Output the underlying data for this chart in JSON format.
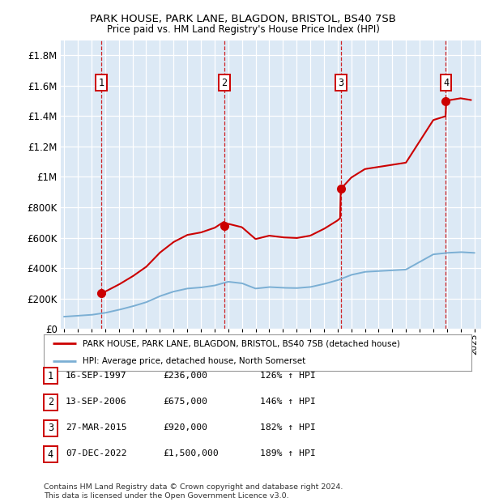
{
  "title1": "PARK HOUSE, PARK LANE, BLAGDON, BRISTOL, BS40 7SB",
  "title2": "Price paid vs. HM Land Registry's House Price Index (HPI)",
  "xlim": [
    1994.75,
    2025.5
  ],
  "ylim": [
    0,
    1900000
  ],
  "yticks": [
    0,
    200000,
    400000,
    600000,
    800000,
    1000000,
    1200000,
    1400000,
    1600000,
    1800000
  ],
  "ytick_labels": [
    "£0",
    "£200K",
    "£400K",
    "£600K",
    "£800K",
    "£1M",
    "£1.2M",
    "£1.4M",
    "£1.6M",
    "£1.8M"
  ],
  "plot_bg": "#dce9f5",
  "grid_color": "#ffffff",
  "purchases": [
    {
      "date_dec": 1997.71,
      "price": 236000,
      "label": "1"
    },
    {
      "date_dec": 2006.71,
      "price": 675000,
      "label": "2"
    },
    {
      "date_dec": 2015.23,
      "price": 920000,
      "label": "3"
    },
    {
      "date_dec": 2022.92,
      "price": 1500000,
      "label": "4"
    }
  ],
  "hpi_color": "#7bafd4",
  "price_color": "#cc0000",
  "legend_line1": "PARK HOUSE, PARK LANE, BLAGDON, BRISTOL, BS40 7SB (detached house)",
  "legend_line2": "HPI: Average price, detached house, North Somerset",
  "table_data": [
    {
      "num": "1",
      "date": "16-SEP-1997",
      "price": "£236,000",
      "hpi": "126% ↑ HPI"
    },
    {
      "num": "2",
      "date": "13-SEP-2006",
      "price": "£675,000",
      "hpi": "146% ↑ HPI"
    },
    {
      "num": "3",
      "date": "27-MAR-2015",
      "price": "£920,000",
      "hpi": "182% ↑ HPI"
    },
    {
      "num": "4",
      "date": "07-DEC-2022",
      "price": "£1,500,000",
      "hpi": "189% ↑ HPI"
    }
  ],
  "footnote": "Contains HM Land Registry data © Crown copyright and database right 2024.\nThis data is licensed under the Open Government Licence v3.0."
}
